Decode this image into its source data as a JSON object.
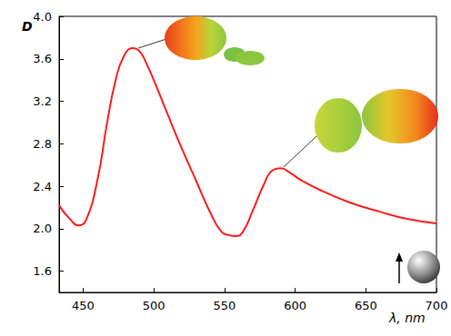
{
  "chart_data": {
    "type": "line",
    "x_label": "λ, nm",
    "y_label": "D",
    "xlim": [
      433,
      700
    ],
    "xticks": [
      450,
      500,
      550,
      600,
      650,
      700
    ],
    "ylim": [
      1.4,
      4.0
    ],
    "yticks": [
      1.6,
      {
        "value": 2.0,
        "label": "2.0"
      },
      2.4,
      2.8,
      3.2,
      3.6,
      {
        "value": 4.0,
        "label": "4.0"
      }
    ],
    "grid": false,
    "series": [
      {
        "name": "D",
        "color": "#ff1a1a",
        "x": [
          433,
          440,
          447,
          452,
          460,
          467,
          473,
          479,
          485,
          490,
          495,
          500,
          510,
          520,
          530,
          540,
          548,
          553,
          558,
          563,
          570,
          578,
          584,
          590,
          596,
          605,
          620,
          640,
          660,
          680,
          700
        ],
        "values": [
          2.22,
          2.1,
          2.03,
          2.08,
          2.45,
          3.0,
          3.4,
          3.63,
          3.7,
          3.67,
          3.55,
          3.4,
          3.07,
          2.75,
          2.45,
          2.15,
          1.97,
          1.94,
          1.93,
          1.97,
          2.17,
          2.42,
          2.55,
          2.57,
          2.53,
          2.45,
          2.35,
          2.24,
          2.16,
          2.09,
          2.05
        ]
      }
    ]
  }
}
